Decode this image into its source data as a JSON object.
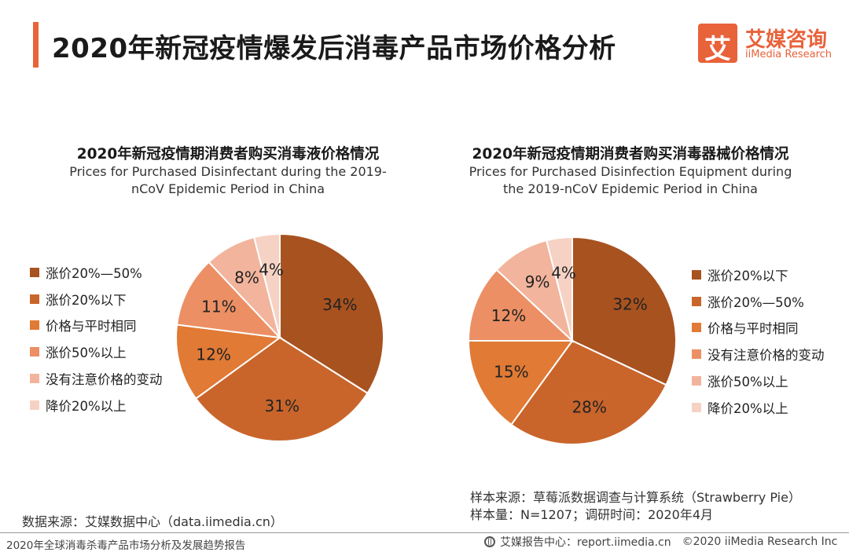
{
  "header": {
    "title": "2020年新冠疫情爆发后消毒产品市场价格分析",
    "logo_glyph": "艾",
    "logo_cn": "艾媒咨询",
    "logo_en": "iiMedia Research",
    "accent_color": "#e8623a"
  },
  "chart_data": [
    {
      "type": "pie",
      "title": "2020年新冠疫情期消费者购买消毒液价格情况",
      "subtitle_lines": [
        "Prices for Purchased Disinfectant during the 2019-",
        "nCoV Epidemic Period in China"
      ],
      "categories": [
        "涨价20%—50%",
        "涨价20%以下",
        "价格与平时相同",
        "涨价50%以上",
        "没有注意价格的变动",
        "降价20%以上"
      ],
      "values": [
        34,
        31,
        12,
        11,
        8,
        4
      ],
      "labels": [
        "34%",
        "31%",
        "12%",
        "11%",
        "8%",
        "4%"
      ],
      "colors": [
        "#a85220",
        "#c9652b",
        "#e07a35",
        "#ec8f64",
        "#f2b49c",
        "#f6d2c4"
      ],
      "legend_position": "left"
    },
    {
      "type": "pie",
      "title": "2020年新冠疫情期消费者购买消毒器械价格情况",
      "subtitle_lines": [
        "Prices for Purchased Disinfection Equipment during",
        "the 2019-nCoV Epidemic Period in China"
      ],
      "categories": [
        "涨价20%以下",
        "涨价20%—50%",
        "价格与平时相同",
        "没有注意价格的变动",
        "涨价50%以上",
        "降价20%以上"
      ],
      "values": [
        32,
        28,
        15,
        12,
        9,
        4
      ],
      "labels": [
        "32%",
        "28%",
        "15%",
        "12%",
        "9%",
        "4%"
      ],
      "colors": [
        "#a85220",
        "#c9652b",
        "#e07a35",
        "#ec8f64",
        "#f2b49c",
        "#f6d2c4"
      ],
      "legend_position": "right"
    }
  ],
  "footer": {
    "source_left": "数据来源：艾媒数据中心（data.iimedia.cn）",
    "sample_source": "样本来源：草莓派数据调查与计算系统（Strawberry Pie）",
    "sample_size": "样本量：N=1207；调研时间：2020年4月",
    "report_name": "2020年全球消毒杀毒产品市场分析及发展趋势报告",
    "report_center": "艾媒报告中心：report.iimedia.cn",
    "copyright": "©2020  iiMedia Research  Inc"
  }
}
